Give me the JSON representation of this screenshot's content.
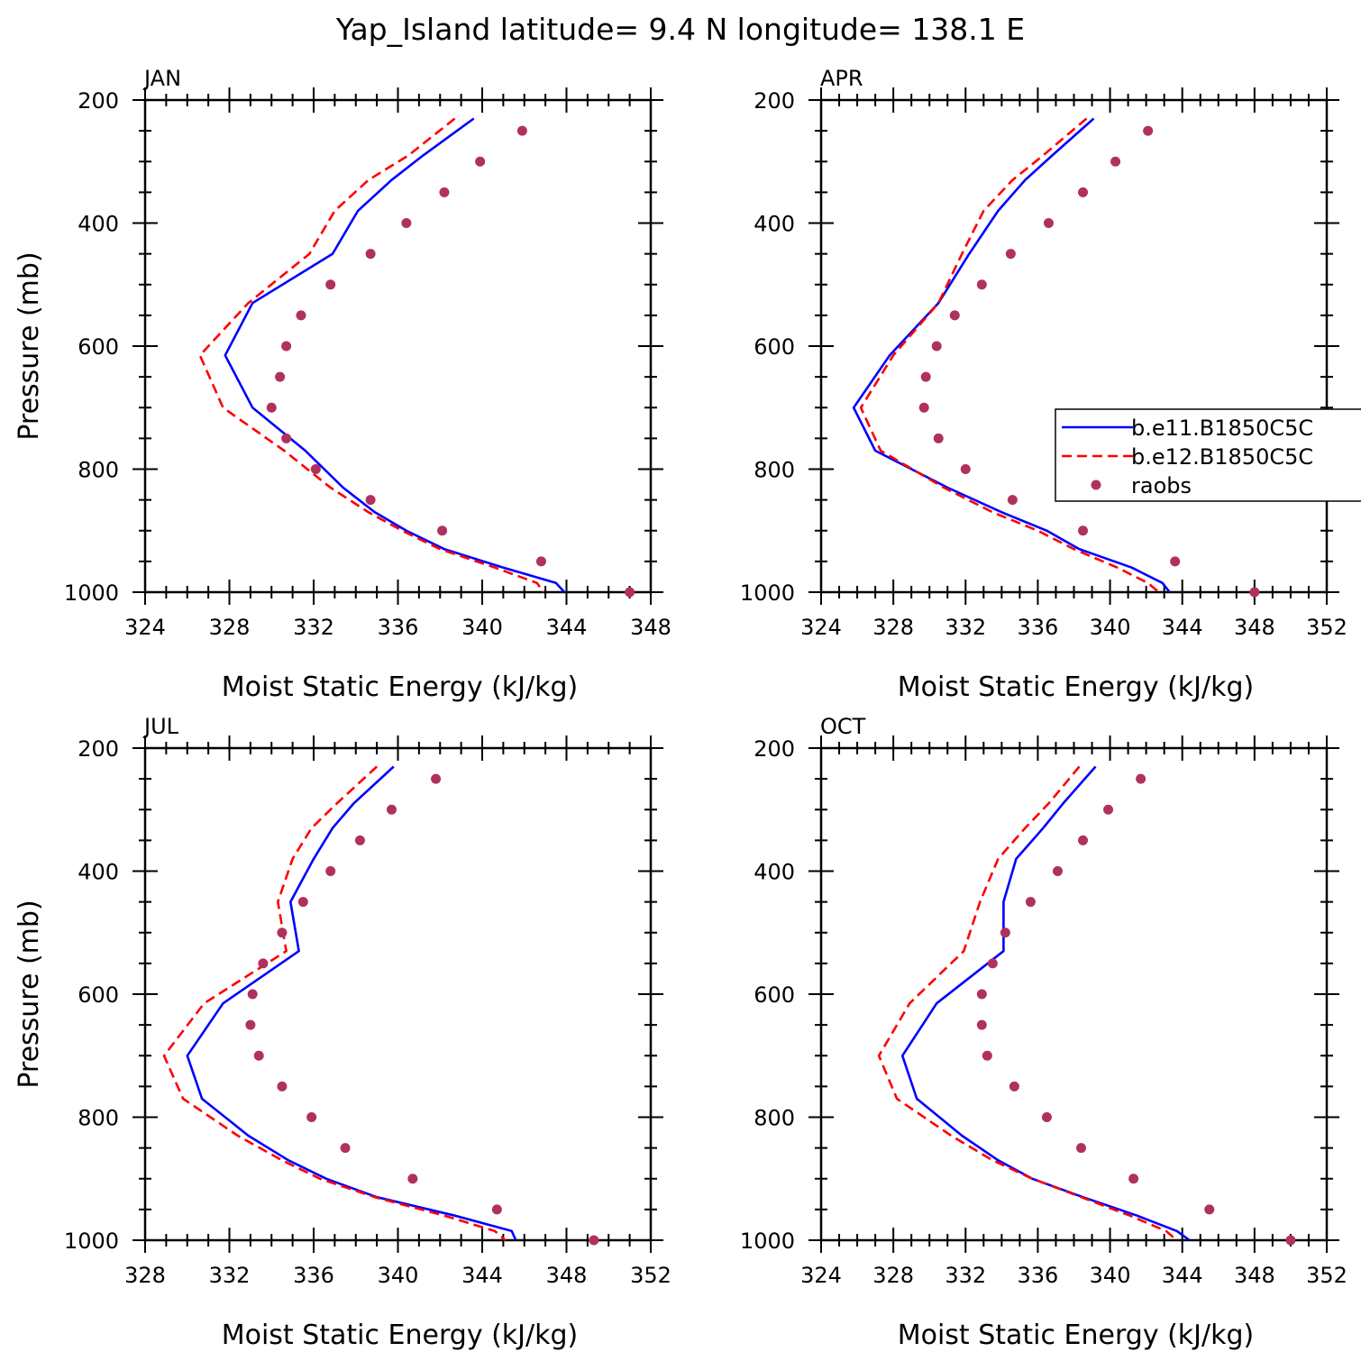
{
  "title": "Yap_Island  latitude= 9.4 N longitude= 138.1 E",
  "colors": {
    "b.e11": "#0000ff",
    "b.e12": "#ff0000",
    "raobs": "#b03060"
  },
  "chart_data": [
    {
      "type": "line",
      "panel": "JAN",
      "xlabel": "Moist Static Energy (kJ/kg)",
      "ylabel": "Pressure (mb)",
      "xlim": [
        324,
        348
      ],
      "ylim": [
        1000,
        200
      ],
      "xticks": [
        "324",
        "328",
        "332",
        "336",
        "340",
        "344",
        "348"
      ],
      "yticks": [
        "200",
        "400",
        "600",
        "800",
        "1000"
      ],
      "grid": false,
      "series": [
        {
          "key": "b.e11",
          "style": "solid",
          "x": [
            339.6,
            337.2,
            335.7,
            334.1,
            332.9,
            329.1,
            327.8,
            329.1,
            331.6,
            333.4,
            334.9,
            336.4,
            338.2,
            341.0,
            343.5,
            343.9
          ],
          "y": [
            230,
            290,
            330,
            380,
            450,
            530,
            615,
            700,
            770,
            830,
            870,
            900,
            930,
            960,
            985,
            1000
          ]
        },
        {
          "key": "b.e12",
          "style": "dashed",
          "x": [
            338.7,
            336.5,
            334.6,
            333.0,
            331.8,
            328.9,
            326.6,
            327.7,
            330.6,
            332.8,
            334.6,
            336.2,
            338.0,
            340.6,
            342.6,
            342.9
          ],
          "y": [
            230,
            290,
            330,
            380,
            450,
            530,
            615,
            700,
            770,
            830,
            870,
            900,
            930,
            960,
            985,
            1000
          ]
        },
        {
          "key": "raobs",
          "style": "markers",
          "x": [
            341.9,
            339.9,
            338.2,
            336.4,
            334.7,
            332.8,
            331.4,
            330.7,
            330.4,
            330.0,
            330.7,
            332.1,
            334.7,
            338.1,
            342.8,
            347.0
          ],
          "y": [
            250,
            300,
            350,
            400,
            450,
            500,
            550,
            600,
            650,
            700,
            750,
            800,
            850,
            900,
            950,
            1000
          ]
        }
      ]
    },
    {
      "type": "line",
      "panel": "APR",
      "xlabel": "Moist Static Energy (kJ/kg)",
      "ylabel": "",
      "xlim": [
        324,
        352
      ],
      "ylim": [
        1000,
        200
      ],
      "xticks": [
        "324",
        "328",
        "332",
        "336",
        "340",
        "344",
        "348",
        "352"
      ],
      "yticks": [
        "200",
        "400",
        "600",
        "800",
        "1000"
      ],
      "grid": false,
      "series": [
        {
          "key": "b.e11",
          "style": "solid",
          "x": [
            339.1,
            336.8,
            335.3,
            333.8,
            332.2,
            330.5,
            327.8,
            325.8,
            327.0,
            331.0,
            334.0,
            336.5,
            338.3,
            341.2,
            342.9,
            343.3
          ],
          "y": [
            230,
            290,
            330,
            380,
            450,
            530,
            615,
            700,
            770,
            830,
            870,
            900,
            930,
            960,
            985,
            1000
          ]
        },
        {
          "key": "b.e12",
          "style": "dashed",
          "x": [
            338.7,
            336.3,
            334.6,
            333.0,
            331.8,
            330.5,
            328.0,
            326.2,
            327.3,
            330.8,
            333.5,
            336.0,
            338.0,
            340.4,
            342.1,
            342.7
          ],
          "y": [
            230,
            290,
            330,
            380,
            450,
            530,
            615,
            700,
            770,
            830,
            870,
            900,
            930,
            960,
            985,
            1000
          ]
        },
        {
          "key": "raobs",
          "style": "markers",
          "x": [
            342.1,
            340.3,
            338.5,
            336.6,
            334.5,
            332.9,
            331.4,
            330.4,
            329.8,
            329.7,
            330.5,
            332.0,
            334.6,
            338.5,
            343.6,
            348.0
          ],
          "y": [
            250,
            300,
            350,
            400,
            450,
            500,
            550,
            600,
            650,
            700,
            750,
            800,
            850,
            900,
            950,
            1000
          ]
        }
      ]
    },
    {
      "type": "line",
      "panel": "JUL",
      "xlabel": "Moist Static Energy (kJ/kg)",
      "ylabel": "Pressure (mb)",
      "xlim": [
        328,
        352
      ],
      "ylim": [
        1000,
        200
      ],
      "xticks": [
        "328",
        "332",
        "336",
        "340",
        "344",
        "348",
        "352"
      ],
      "yticks": [
        "200",
        "400",
        "600",
        "800",
        "1000"
      ],
      "grid": false,
      "series": [
        {
          "key": "b.e11",
          "style": "solid",
          "x": [
            339.8,
            337.9,
            336.9,
            336.0,
            334.9,
            335.3,
            331.7,
            330.0,
            330.7,
            332.9,
            334.8,
            336.6,
            339.0,
            342.7,
            345.4,
            345.6
          ],
          "y": [
            230,
            290,
            330,
            380,
            450,
            530,
            615,
            700,
            770,
            830,
            870,
            900,
            930,
            960,
            985,
            1000
          ]
        },
        {
          "key": "b.e12",
          "style": "dashed",
          "x": [
            339.0,
            337.1,
            335.9,
            335.0,
            334.3,
            334.7,
            330.8,
            328.9,
            329.8,
            332.4,
            334.5,
            336.3,
            338.9,
            342.2,
            344.6,
            345.1
          ],
          "y": [
            230,
            290,
            330,
            380,
            450,
            530,
            615,
            700,
            770,
            830,
            870,
            900,
            930,
            960,
            985,
            1000
          ]
        },
        {
          "key": "raobs",
          "style": "markers",
          "x": [
            341.8,
            339.7,
            338.2,
            336.8,
            335.5,
            334.5,
            333.6,
            333.1,
            333.0,
            333.4,
            334.5,
            335.9,
            337.5,
            340.7,
            344.7,
            349.3
          ],
          "y": [
            250,
            300,
            350,
            400,
            450,
            500,
            550,
            600,
            650,
            700,
            750,
            800,
            850,
            900,
            950,
            1000
          ]
        }
      ]
    },
    {
      "type": "line",
      "panel": "OCT",
      "xlabel": "Moist Static Energy (kJ/kg)",
      "ylabel": "",
      "xlim": [
        324,
        352
      ],
      "ylim": [
        1000,
        200
      ],
      "xticks": [
        "324",
        "328",
        "332",
        "336",
        "340",
        "344",
        "348",
        "352"
      ],
      "yticks": [
        "200",
        "400",
        "600",
        "800",
        "1000"
      ],
      "grid": false,
      "series": [
        {
          "key": "b.e11",
          "style": "solid",
          "x": [
            339.2,
            337.4,
            336.3,
            334.8,
            334.1,
            334.1,
            330.4,
            328.5,
            329.3,
            331.8,
            333.8,
            335.7,
            338.5,
            341.5,
            343.7,
            344.4
          ],
          "y": [
            230,
            290,
            330,
            380,
            450,
            530,
            615,
            700,
            770,
            830,
            870,
            900,
            930,
            960,
            985,
            1000
          ]
        },
        {
          "key": "b.e12",
          "style": "dashed",
          "x": [
            338.3,
            336.6,
            335.3,
            333.8,
            332.8,
            331.9,
            328.9,
            327.2,
            328.2,
            331.2,
            333.5,
            335.7,
            338.4,
            341.1,
            343.1,
            343.7
          ],
          "y": [
            230,
            290,
            330,
            380,
            450,
            530,
            615,
            700,
            770,
            830,
            870,
            900,
            930,
            960,
            985,
            1000
          ]
        },
        {
          "key": "raobs",
          "style": "markers",
          "x": [
            341.7,
            339.9,
            338.5,
            337.1,
            335.6,
            334.2,
            333.5,
            332.9,
            332.9,
            333.2,
            334.7,
            336.5,
            338.4,
            341.3,
            345.5,
            350.0
          ],
          "y": [
            250,
            300,
            350,
            400,
            450,
            500,
            550,
            600,
            650,
            700,
            750,
            800,
            850,
            900,
            950,
            1000
          ]
        }
      ]
    }
  ],
  "legend": {
    "panel": "APR",
    "placement": "right",
    "entries": [
      {
        "key": "b.e11",
        "label": "b.e11.B1850C5C",
        "style": "solid"
      },
      {
        "key": "b.e12",
        "label": "b.e12.B1850C5C",
        "style": "dashed"
      },
      {
        "key": "raobs",
        "label": "raobs",
        "style": "markers"
      }
    ]
  }
}
